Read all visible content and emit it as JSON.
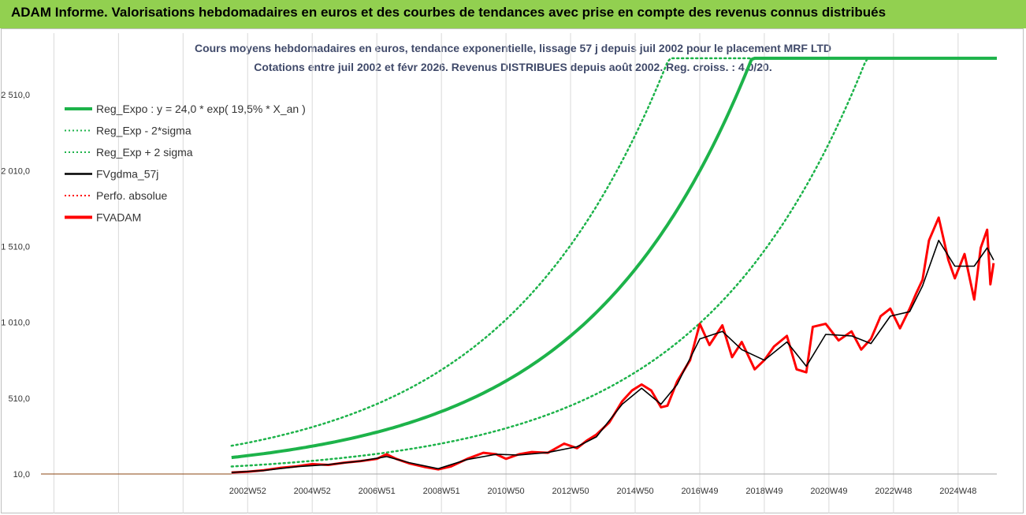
{
  "header": {
    "banner": "ADAM Informe. Valorisations hebdomadaires en euros et des courbes de tendances avec prise en compte des revenus connus distribués",
    "banner_color": "#92d050"
  },
  "chart_data": {
    "type": "line",
    "title": "Cours moyens hebdomadaires en euros, tendance exponentielle, lissage 57 j depuis juil 2002 pour le placement MRF LTD",
    "subtitle": "Cotations entre juil 2002 et févr 2026.  Revenus DISTRIBUES depuis août 2002. Reg. croiss. : 4,0/20.",
    "y_ticks": [
      "10,0",
      "510,0",
      "1 010,0",
      "1 510,0",
      "2 010,0",
      "2 510,0"
    ],
    "y_tick_values": [
      10,
      510,
      1010,
      1510,
      2010,
      2510
    ],
    "x_ticks": [
      "2002W52",
      "2004W52",
      "2006W51",
      "2008W51",
      "2010W50",
      "2012W50",
      "2014W50",
      "2016W49",
      "2018W49",
      "2020W49",
      "2022W48",
      "2024W48"
    ],
    "x_tick_years": [
      2003.0,
      2005.0,
      2007.0,
      2009.0,
      2011.0,
      2013.0,
      2015.0,
      2017.0,
      2019.0,
      2021.0,
      2023.0,
      2025.0
    ],
    "xlim": [
      1996.6,
      2026.2
    ],
    "ylim": [
      10,
      2760
    ],
    "legend_position": "top-left",
    "grid": "vertical",
    "legend": [
      {
        "label": "Reg_Expo : y = 24,0 * exp( 19,5% *  X_an )",
        "color": "#1db34a",
        "style": "solid-thick"
      },
      {
        "label": "Reg_Exp - 2*sigma",
        "color": "#1db34a",
        "style": "dotted"
      },
      {
        "label": "Reg_Exp + 2 sigma",
        "color": "#1db34a",
        "style": "dotted"
      },
      {
        "label": "FVgdma_57j",
        "color": "#000000",
        "style": "solid"
      },
      {
        "label": "Perfo. absolue",
        "color": "#ff0000",
        "style": "dotted"
      },
      {
        "label": "FVADAM",
        "color": "#ff0000",
        "style": "solid-thick"
      }
    ],
    "trend": {
      "a": 24.0,
      "rate": 0.195,
      "start_year": 2002.5,
      "lower_factor": 0.5,
      "upper_factor": 1.65
    },
    "series": [
      {
        "name": "FVADAM",
        "x": [
          2002.5,
          2003.0,
          2003.5,
          2004.0,
          2004.5,
          2005.0,
          2005.5,
          2006.0,
          2006.5,
          2007.0,
          2007.3,
          2007.6,
          2008.0,
          2008.5,
          2008.9,
          2009.3,
          2009.8,
          2010.3,
          2010.7,
          2011.0,
          2011.4,
          2011.8,
          2012.3,
          2012.8,
          2013.2,
          2013.5,
          2013.8,
          2014.2,
          2014.6,
          2014.9,
          2015.2,
          2015.5,
          2015.8,
          2016.0,
          2016.3,
          2016.7,
          2017.0,
          2017.3,
          2017.7,
          2018.0,
          2018.3,
          2018.7,
          2019.0,
          2019.3,
          2019.7,
          2020.0,
          2020.3,
          2020.5,
          2020.9,
          2021.3,
          2021.7,
          2022.0,
          2022.3,
          2022.6,
          2022.9,
          2023.2,
          2023.5,
          2023.7,
          2023.9,
          2024.1,
          2024.4,
          2024.7,
          2024.9,
          2025.2,
          2025.5,
          2025.7,
          2025.9,
          2026.0,
          2026.1
        ],
        "values": [
          20,
          25,
          35,
          50,
          60,
          75,
          70,
          85,
          95,
          110,
          140,
          110,
          80,
          55,
          40,
          60,
          110,
          150,
          140,
          110,
          140,
          155,
          150,
          210,
          180,
          230,
          270,
          350,
          490,
          560,
          600,
          560,
          450,
          460,
          620,
          760,
          1000,
          860,
          990,
          780,
          880,
          700,
          760,
          850,
          920,
          700,
          680,
          980,
          1000,
          890,
          950,
          830,
          900,
          1050,
          1100,
          970,
          1100,
          1200,
          1290,
          1550,
          1700,
          1420,
          1300,
          1460,
          1160,
          1500,
          1620,
          1260,
          1400
        ]
      },
      {
        "name": "FVgdma_57j",
        "x": [
          2002.5,
          2003.5,
          2004.5,
          2005.5,
          2006.5,
          2007.3,
          2008.0,
          2008.9,
          2009.8,
          2010.7,
          2011.4,
          2012.3,
          2013.2,
          2013.8,
          2014.6,
          2015.2,
          2015.8,
          2016.3,
          2017.0,
          2017.7,
          2018.3,
          2019.0,
          2019.7,
          2020.3,
          2020.9,
          2021.7,
          2022.3,
          2022.9,
          2023.5,
          2023.9,
          2024.4,
          2024.9,
          2025.5,
          2025.9,
          2026.1
        ],
        "values": [
          20,
          33,
          58,
          72,
          95,
          125,
          85,
          45,
          105,
          140,
          135,
          152,
          190,
          255,
          470,
          575,
          470,
          600,
          900,
          950,
          830,
          760,
          880,
          720,
          930,
          920,
          870,
          1050,
          1080,
          1250,
          1550,
          1380,
          1380,
          1500,
          1420
        ]
      }
    ]
  }
}
